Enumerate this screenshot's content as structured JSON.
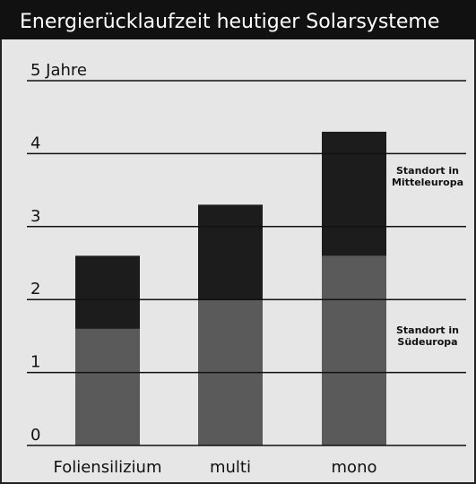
{
  "chart_data": {
    "type": "bar",
    "title": "Energierücklaufzeit heutiger Solarsysteme",
    "categories": [
      "Foliensilizium",
      "multi",
      "mono"
    ],
    "series": [
      {
        "name": "Standort in Mitteleuropa",
        "color": "#1c1c1c",
        "values": [
          2.6,
          3.3,
          4.3
        ]
      },
      {
        "name": "Standort in Südeuropa",
        "color": "#5a5a5a",
        "values": [
          1.6,
          2.0,
          2.6
        ]
      }
    ],
    "ylim": [
      0,
      5.4
    ],
    "yticks": [
      0,
      1,
      2,
      3,
      4,
      {
        "value": 5,
        "label": "5 Jahre"
      }
    ],
    "grid": true
  }
}
